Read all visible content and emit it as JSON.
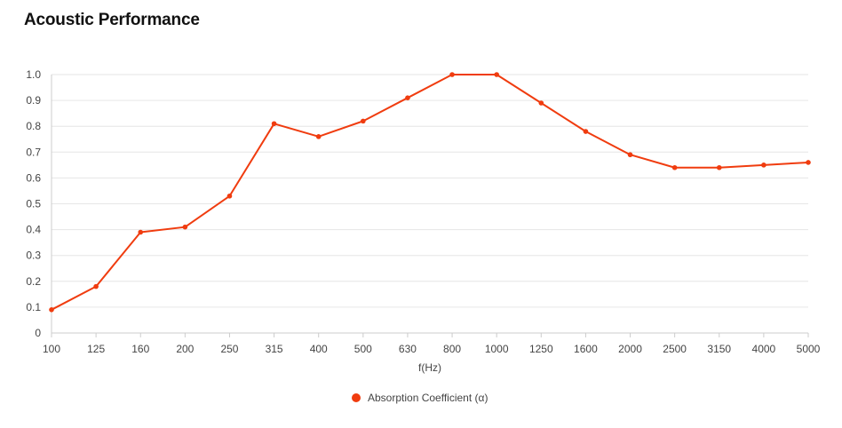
{
  "chart_data": {
    "type": "line",
    "title": "Acoustic Performance",
    "xlabel": "f(Hz)",
    "ylabel": "",
    "categories": [
      "100",
      "125",
      "160",
      "200",
      "250",
      "315",
      "400",
      "500",
      "630",
      "800",
      "1000",
      "1250",
      "1600",
      "2000",
      "2500",
      "3150",
      "4000",
      "5000"
    ],
    "series": [
      {
        "name": "Absorption Coefficient (α)",
        "values": [
          0.09,
          0.18,
          0.39,
          0.41,
          0.53,
          0.81,
          0.76,
          0.82,
          0.91,
          1.0,
          1.0,
          0.89,
          0.78,
          0.69,
          0.64,
          0.64,
          0.65,
          0.66
        ]
      }
    ],
    "ylim": [
      0,
      1.0
    ],
    "yticks": [
      "0",
      "0.1",
      "0.2",
      "0.3",
      "0.4",
      "0.5",
      "0.6",
      "0.7",
      "0.8",
      "0.9",
      "1.0"
    ],
    "grid": true,
    "legend_position": "bottom-center",
    "colors": {
      "series": "#f03c0f",
      "grid": "#e6e6e6",
      "axis": "#cccccc",
      "text": "#444444"
    }
  }
}
